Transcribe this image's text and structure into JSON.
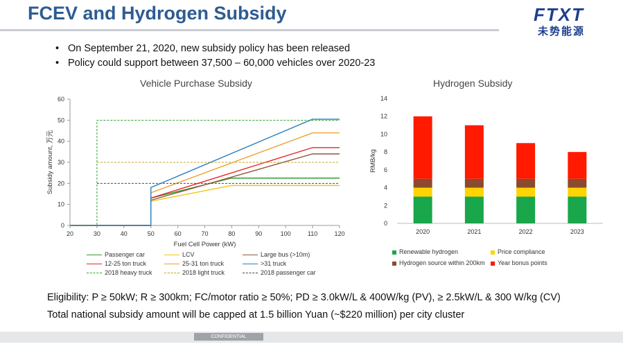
{
  "header": {
    "title": "FCEV and Hydrogen Subsidy",
    "logo_en": "FTXT",
    "logo_cn": "未势能源"
  },
  "bullets": [
    "On September 21, 2020, new subsidy policy has been released",
    "Policy could support between 37,500 – 60,000 vehicles over 2020-23"
  ],
  "chart_data": [
    {
      "type": "line",
      "title": "Vehicle Purchase Subsidy",
      "xlabel": "Fuel Cell Power (kW)",
      "ylabel": "Subsidy amount, 万元",
      "xlim": [
        20,
        120
      ],
      "ylim": [
        0,
        60
      ],
      "xticks": [
        20,
        30,
        40,
        50,
        60,
        70,
        80,
        90,
        100,
        110,
        120
      ],
      "yticks": [
        0,
        10,
        20,
        30,
        40,
        50,
        60
      ],
      "series": [
        {
          "name": "Passenger car",
          "color": "#2ca02c",
          "style": "solid",
          "points": [
            [
              20,
              0
            ],
            [
              50,
              0
            ],
            [
              50,
              13
            ],
            [
              80,
              22.5
            ],
            [
              120,
              22.5
            ]
          ]
        },
        {
          "name": "LCV",
          "color": "#f0c419",
          "style": "solid",
          "points": [
            [
              20,
              0
            ],
            [
              50,
              0
            ],
            [
              50,
              11.5
            ],
            [
              80,
              19
            ],
            [
              120,
              19
            ]
          ]
        },
        {
          "name": "Large bus (>10m)",
          "color": "#8b5a3c",
          "style": "solid",
          "points": [
            [
              20,
              0
            ],
            [
              50,
              0
            ],
            [
              50,
              12
            ],
            [
              110,
              34
            ],
            [
              120,
              34
            ]
          ]
        },
        {
          "name": "12-25 ton truck",
          "color": "#e8232a",
          "style": "solid",
          "points": [
            [
              20,
              0
            ],
            [
              50,
              0
            ],
            [
              50,
              13
            ],
            [
              110,
              37
            ],
            [
              120,
              37
            ]
          ]
        },
        {
          "name": "25-31 ton truck",
          "color": "#f0a030",
          "style": "solid",
          "points": [
            [
              20,
              0
            ],
            [
              50,
              0
            ],
            [
              50,
              15.5
            ],
            [
              110,
              44
            ],
            [
              120,
              44
            ]
          ]
        },
        {
          "name": ">31 truck",
          "color": "#2a7fc0",
          "style": "solid",
          "points": [
            [
              20,
              0
            ],
            [
              50,
              0
            ],
            [
              50,
              18
            ],
            [
              110,
              50.5
            ],
            [
              120,
              50.5
            ]
          ]
        },
        {
          "name": "2018 heavy truck",
          "color": "#2ca02c",
          "style": "dashed",
          "points": [
            [
              20,
              0
            ],
            [
              30,
              0
            ],
            [
              30,
              50
            ],
            [
              120,
              50
            ]
          ]
        },
        {
          "name": "2018 light truck",
          "color": "#c8a020",
          "style": "dashed",
          "points": [
            [
              30,
              30
            ],
            [
              120,
              30
            ]
          ]
        },
        {
          "name": "2018 passenger car",
          "color": "#444444",
          "style": "dashed",
          "points": [
            [
              30,
              20
            ],
            [
              120,
              20
            ]
          ]
        }
      ]
    },
    {
      "type": "bar",
      "stacked": true,
      "title": "Hydrogen Subsidy",
      "xlabel": "",
      "ylabel": "RMB/kg",
      "ylim": [
        0,
        14
      ],
      "yticks": [
        0,
        2,
        4,
        6,
        8,
        10,
        12,
        14
      ],
      "categories": [
        "2020",
        "2021",
        "2022",
        "2023"
      ],
      "series": [
        {
          "name": "Renewable hydrogen",
          "color": "#1aa64b",
          "values": [
            3,
            3,
            3,
            3
          ]
        },
        {
          "name": "Price compliance",
          "color": "#ffd400",
          "values": [
            1,
            1,
            1,
            1
          ]
        },
        {
          "name": "Hydrogen source within 200km",
          "color": "#8b4a2b",
          "values": [
            1,
            1,
            1,
            1
          ]
        },
        {
          "name": "Year bonus points",
          "color": "#ff1a00",
          "values": [
            7,
            6,
            4,
            3
          ]
        }
      ]
    }
  ],
  "notes": {
    "eligibility": "Eligibility: P ≥ 50kW; R ≥ 300km; FC/motor ratio ≥ 50%; PD ≥ 3.0kW/L & 400W/kg (PV), ≥ 2.5kW/L & 300 W/kg (CV)",
    "cap": "Total national subsidy amount will be capped at 1.5 billion Yuan (~$220 million) per city cluster"
  },
  "footer": {
    "confidential": "CONFIDENTIAL"
  }
}
